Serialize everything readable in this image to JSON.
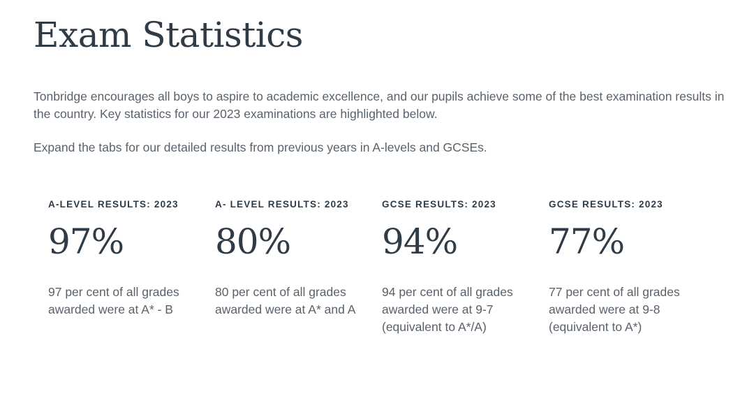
{
  "page": {
    "title": "Exam Statistics",
    "intro": "Tonbridge encourages all boys to aspire to academic excellence, and our pupils achieve some of the best examination results in the country. Key statistics for our 2023 examinations are highlighted below.",
    "expand_note": "Expand the tabs for our detailed results from previous years in A-levels and GCSEs."
  },
  "stats": [
    {
      "label": "A-LEVEL RESULTS: 2023",
      "value": "97%",
      "description": "97 per cent of all grades awarded were at A* - B"
    },
    {
      "label": "A- LEVEL RESULTS: 2023",
      "value": "80%",
      "description": "80 per cent of all grades awarded were at A* and A"
    },
    {
      "label": "GCSE RESULTS: 2023",
      "value": "94%",
      "description": "94 per cent of all grades awarded were at 9-7 (equivalent to A*/A)"
    },
    {
      "label": "GCSE RESULTS: 2023",
      "value": "77%",
      "description": "77 per cent of all grades awarded were at 9-8 (equivalent to A*)"
    }
  ],
  "colors": {
    "heading": "#2f3b46",
    "body_text": "#59626b",
    "background": "#ffffff"
  }
}
